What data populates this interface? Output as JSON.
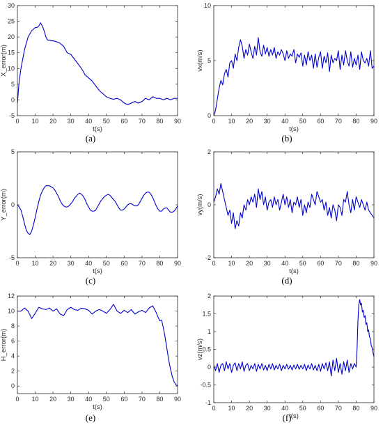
{
  "figure": {
    "line_color": "#0000cc",
    "axis_color": "#262626"
  },
  "chart_data": [
    {
      "id": "a",
      "caption": "(a)",
      "type": "line",
      "xlabel": "t(s)",
      "ylabel": "X_error(m)",
      "xlim": [
        0,
        90
      ],
      "ylim": [
        -5,
        30
      ],
      "xticks": [
        0,
        10,
        20,
        30,
        40,
        50,
        60,
        70,
        80,
        90
      ],
      "yticks": [
        -5,
        0,
        5,
        10,
        15,
        20,
        25,
        30
      ],
      "grid": false,
      "series": [
        {
          "x": [
            0,
            1,
            2,
            3,
            4,
            5,
            6,
            7,
            8,
            9,
            10,
            11,
            12,
            13,
            14,
            15,
            16,
            17,
            18,
            19,
            20,
            22,
            24,
            26,
            28,
            30,
            32,
            34,
            36,
            38,
            40,
            42,
            44,
            46,
            48,
            50,
            52,
            54,
            56,
            58,
            60,
            62,
            64,
            66,
            68,
            70,
            72,
            74,
            76,
            78,
            80,
            82,
            84,
            86,
            88,
            90
          ],
          "y": [
            -1,
            6,
            10,
            13,
            16,
            18,
            20,
            21,
            22,
            22.5,
            23,
            23,
            23.5,
            24.5,
            23.5,
            22,
            20,
            19,
            19,
            18.8,
            18.8,
            18.5,
            18,
            17,
            15,
            14.5,
            13,
            11.5,
            10,
            8,
            7,
            6,
            4.5,
            3,
            2,
            1,
            0.5,
            0.2,
            0.5,
            0,
            -1,
            -1.5,
            -1,
            -0.5,
            -1,
            -0.5,
            0.5,
            0,
            1,
            0.5,
            0.5,
            0,
            0.5,
            0,
            0.5,
            0.5
          ]
        }
      ]
    },
    {
      "id": "b",
      "caption": "(b)",
      "type": "line",
      "xlabel": "t(s)",
      "ylabel": "vx(m/s)",
      "xlim": [
        0,
        90
      ],
      "ylim": [
        0,
        10
      ],
      "xticks": [
        0,
        10,
        20,
        30,
        40,
        50,
        60,
        70,
        80,
        90
      ],
      "yticks": [
        0,
        5,
        10
      ],
      "grid": false,
      "series": [
        {
          "x": [
            0,
            1,
            2,
            3,
            4,
            5,
            6,
            7,
            8,
            9,
            10,
            11,
            12,
            13,
            14,
            15,
            16,
            17,
            18,
            19,
            20,
            21,
            22,
            23,
            24,
            25,
            26,
            27,
            28,
            29,
            30,
            31,
            32,
            33,
            34,
            35,
            36,
            37,
            38,
            39,
            40,
            41,
            42,
            43,
            44,
            45,
            46,
            47,
            48,
            49,
            50,
            51,
            52,
            53,
            54,
            55,
            56,
            57,
            58,
            59,
            60,
            61,
            62,
            63,
            64,
            65,
            66,
            67,
            68,
            69,
            70,
            71,
            72,
            73,
            74,
            75,
            76,
            77,
            78,
            79,
            80,
            81,
            82,
            83,
            84,
            85,
            86,
            87,
            88,
            89,
            90
          ],
          "y": [
            0,
            0.5,
            1.5,
            2.5,
            3.2,
            2.8,
            3.8,
            4.2,
            3.5,
            4.8,
            5,
            4.3,
            5.6,
            5,
            6.2,
            6.9,
            6.3,
            5.2,
            6,
            5.5,
            6.5,
            5.8,
            5.2,
            6.3,
            5.5,
            7.1,
            5.8,
            5.4,
            6.4,
            5.6,
            6.2,
            5.4,
            6,
            5.5,
            6.2,
            5.2,
            5.8,
            5.5,
            6,
            5.6,
            5,
            5.9,
            5.2,
            5.6,
            5.4,
            6,
            4.8,
            5.6,
            5.3,
            5.7,
            4.5,
            5.5,
            4.6,
            5.8,
            5,
            5.5,
            4.3,
            5.6,
            4.4,
            5.3,
            5.8,
            4.3,
            5.4,
            4.8,
            5.7,
            4,
            5.5,
            4.8,
            5.2,
            5,
            5.9,
            4.2,
            5.5,
            4.6,
            5.9,
            5,
            4.5,
            5.8,
            4.4,
            5.2,
            4.6,
            5.5,
            4.2,
            5.8,
            5,
            4.8,
            5.2,
            4.5,
            5.9,
            4.3,
            4.5
          ]
        }
      ]
    },
    {
      "id": "c",
      "caption": "(c)",
      "type": "line",
      "xlabel": "t(s)",
      "ylabel": "Y_error(m)",
      "xlim": [
        0,
        90
      ],
      "ylim": [
        -5,
        5
      ],
      "xticks": [
        0,
        10,
        20,
        30,
        40,
        50,
        60,
        70,
        80,
        90
      ],
      "yticks": [
        -5,
        0,
        5
      ],
      "grid": false,
      "series": [
        {
          "x": [
            0,
            1,
            2,
            3,
            4,
            5,
            6,
            7,
            8,
            9,
            10,
            11,
            12,
            13,
            14,
            15,
            16,
            17,
            18,
            19,
            20,
            21,
            22,
            23,
            24,
            25,
            26,
            27,
            28,
            29,
            30,
            31,
            32,
            33,
            34,
            35,
            36,
            37,
            38,
            39,
            40,
            41,
            42,
            43,
            44,
            45,
            46,
            47,
            48,
            49,
            50,
            51,
            52,
            53,
            54,
            55,
            56,
            57,
            58,
            59,
            60,
            61,
            62,
            63,
            64,
            65,
            66,
            67,
            68,
            69,
            70,
            71,
            72,
            73,
            74,
            75,
            76,
            77,
            78,
            79,
            80,
            81,
            82,
            83,
            84,
            85,
            86,
            87,
            88,
            89,
            90
          ],
          "y": [
            0,
            -0.2,
            -0.5,
            -1.1,
            -1.8,
            -2.4,
            -2.7,
            -2.8,
            -2.5,
            -1.9,
            -1.2,
            -0.4,
            0.3,
            0.9,
            1.3,
            1.6,
            1.8,
            1.8,
            1.8,
            1.7,
            1.6,
            1.4,
            1.1,
            0.8,
            0.4,
            0.1,
            -0.1,
            -0.2,
            -0.2,
            -0.1,
            0.1,
            0.3,
            0.6,
            0.8,
            1,
            1.1,
            1,
            0.8,
            0.5,
            0.1,
            -0.2,
            -0.5,
            -0.6,
            -0.6,
            -0.5,
            -0.2,
            0.1,
            0.4,
            0.6,
            0.8,
            0.9,
            1,
            0.9,
            0.7,
            0.5,
            0.3,
            0,
            -0.3,
            -0.5,
            -0.5,
            -0.4,
            -0.2,
            0,
            0.1,
            0.1,
            0,
            -0.1,
            -0.1,
            0,
            0.3,
            0.6,
            0.9,
            1.1,
            1.2,
            1.2,
            1,
            0.7,
            0.3,
            -0.1,
            -0.4,
            -0.6,
            -0.6,
            -0.4,
            -0.3,
            -0.3,
            -0.5,
            -0.7,
            -0.7,
            -0.6,
            -0.4,
            -0.1
          ]
        }
      ]
    },
    {
      "id": "d",
      "caption": "(d)",
      "type": "line",
      "xlabel": "t(s)",
      "ylabel": "vy(m/s)",
      "xlim": [
        0,
        90
      ],
      "ylim": [
        -2,
        2
      ],
      "xticks": [
        0,
        10,
        20,
        30,
        40,
        50,
        60,
        70,
        80,
        90
      ],
      "yticks": [
        -2,
        0,
        2
      ],
      "grid": false,
      "series": [
        {
          "x": [
            0,
            1,
            2,
            3,
            4,
            5,
            6,
            7,
            8,
            9,
            10,
            11,
            12,
            13,
            14,
            15,
            16,
            17,
            18,
            19,
            20,
            21,
            22,
            23,
            24,
            25,
            26,
            27,
            28,
            29,
            30,
            31,
            32,
            33,
            34,
            35,
            36,
            37,
            38,
            39,
            40,
            41,
            42,
            43,
            44,
            45,
            46,
            47,
            48,
            49,
            50,
            51,
            52,
            53,
            54,
            55,
            56,
            57,
            58,
            59,
            60,
            61,
            62,
            63,
            64,
            65,
            66,
            67,
            68,
            69,
            70,
            71,
            72,
            73,
            74,
            75,
            76,
            77,
            78,
            79,
            80,
            81,
            82,
            83,
            84,
            85,
            86,
            87,
            88,
            89,
            90
          ],
          "y": [
            0.1,
            0.3,
            0.6,
            0.4,
            0.8,
            0.5,
            0.2,
            -0.1,
            -0.4,
            -0.2,
            -0.7,
            -0.3,
            -0.9,
            -0.6,
            -0.8,
            -0.3,
            -0.5,
            0,
            -0.2,
            0.2,
            0,
            0.3,
            0.1,
            0.4,
            -0.1,
            0.6,
            0.2,
            0.5,
            0,
            0.3,
            -0.2,
            0.1,
            0.2,
            -0.1,
            0.3,
            0,
            0.2,
            -0.2,
            0.1,
            0.4,
            0,
            0.3,
            -0.1,
            0.2,
            -0.3,
            0.1,
            0,
            0.3,
            -0.1,
            0.2,
            -0.4,
            0,
            -0.3,
            0.1,
            -0.1,
            0.4,
            0.2,
            0,
            0.5,
            0.3,
            0.1,
            0.2,
            -0.2,
            0.1,
            -0.4,
            -0.1,
            -0.5,
            0,
            -0.2,
            -0.6,
            0,
            -0.1,
            -0.4,
            0.2,
            0.1,
            0.5,
            0,
            -0.3,
            0.2,
            -0.2,
            0.3,
            0.1,
            -0.1,
            0.2,
            0,
            -0.2,
            0.1,
            -0.2,
            -0.3,
            -0.4,
            -0.5
          ]
        }
      ]
    },
    {
      "id": "e",
      "caption": "(e)",
      "type": "line",
      "xlabel": "t(s)",
      "ylabel": "H_error(m)",
      "xlim": [
        0,
        90
      ],
      "ylim": [
        -1,
        12
      ],
      "xticks": [
        0,
        10,
        20,
        30,
        40,
        50,
        60,
        70,
        80,
        90
      ],
      "yticks": [
        0,
        2,
        4,
        6,
        8,
        10,
        12
      ],
      "grid": false,
      "series": [
        {
          "x": [
            0,
            2,
            4,
            6,
            8,
            10,
            12,
            14,
            16,
            18,
            20,
            22,
            24,
            26,
            28,
            30,
            32,
            34,
            36,
            38,
            40,
            42,
            44,
            46,
            48,
            50,
            52,
            54,
            56,
            58,
            60,
            62,
            64,
            66,
            68,
            70,
            72,
            74,
            76,
            78,
            79,
            80,
            81,
            82,
            83,
            84,
            85,
            86,
            87,
            88,
            89,
            90
          ],
          "y": [
            10,
            10,
            10.4,
            10,
            9,
            9.7,
            10.5,
            10.3,
            10.2,
            10.4,
            10,
            10.3,
            9.6,
            9.4,
            10.2,
            10.5,
            10.2,
            10.1,
            10.4,
            10.3,
            10.1,
            9.6,
            10,
            10.2,
            10,
            9.7,
            10.2,
            10.9,
            10,
            9.7,
            10.1,
            9.8,
            10.2,
            9.6,
            9.9,
            10.1,
            9.8,
            10.4,
            10.7,
            9.8,
            9.2,
            8.7,
            8.8,
            7.8,
            6.5,
            5,
            3.5,
            2.3,
            1.3,
            0.6,
            0.2,
            0
          ]
        }
      ]
    },
    {
      "id": "f",
      "caption": "(f)",
      "type": "line",
      "xlabel": "t(s)",
      "ylabel": "vz(m/s)",
      "xlim": [
        0,
        90
      ],
      "ylim": [
        -1,
        2
      ],
      "xticks": [
        0,
        10,
        20,
        30,
        40,
        50,
        60,
        70,
        80,
        90
      ],
      "yticks": [
        -1,
        -0.5,
        0,
        0.5,
        1,
        1.5,
        2
      ],
      "grid": false,
      "series": [
        {
          "x": [
            0,
            1,
            2,
            3,
            4,
            5,
            6,
            7,
            8,
            9,
            10,
            11,
            12,
            13,
            14,
            15,
            16,
            17,
            18,
            19,
            20,
            21,
            22,
            23,
            24,
            25,
            26,
            27,
            28,
            29,
            30,
            31,
            32,
            33,
            34,
            35,
            36,
            37,
            38,
            39,
            40,
            41,
            42,
            43,
            44,
            45,
            46,
            47,
            48,
            49,
            50,
            51,
            52,
            53,
            54,
            55,
            56,
            57,
            58,
            59,
            60,
            61,
            62,
            63,
            64,
            65,
            66,
            67,
            68,
            69,
            70,
            71,
            72,
            73,
            74,
            75,
            76,
            77,
            78,
            79,
            80,
            80.5,
            81,
            81.5,
            82,
            82.5,
            83,
            83.5,
            84,
            84.5,
            85,
            85.5,
            86,
            86.5,
            87,
            87.5,
            88,
            88.5,
            89,
            89.5,
            90
          ],
          "y": [
            0.05,
            -0.1,
            0.1,
            -0.15,
            0.05,
            0.1,
            -0.1,
            0.15,
            -0.05,
            0.1,
            -0.15,
            0.05,
            0.12,
            -0.1,
            0.1,
            -0.05,
            0.15,
            -0.12,
            0.05,
            0.1,
            -0.1,
            0.05,
            -0.05,
            0.1,
            -0.12,
            0.08,
            -0.05,
            0.1,
            -0.08,
            0.05,
            -0.1,
            0.08,
            -0.05,
            0.1,
            -0.08,
            0.05,
            -0.05,
            0.08,
            -0.1,
            0.05,
            -0.05,
            0.08,
            -0.06,
            0.05,
            -0.08,
            0.06,
            -0.05,
            0.08,
            -0.06,
            0.05,
            -0.05,
            0.08,
            -0.1,
            0.06,
            -0.05,
            0.1,
            -0.08,
            0.05,
            -0.1,
            0.08,
            -0.12,
            0.1,
            -0.05,
            0.12,
            -0.1,
            0.15,
            -0.25,
            0.2,
            -0.1,
            0.25,
            -0.15,
            0.1,
            -0.2,
            0.15,
            -0.1,
            0.2,
            -0.15,
            0.1,
            -0.05,
            0.1,
            0,
            0.5,
            1.3,
            1.75,
            1.9,
            1.75,
            1.8,
            1.55,
            1.6,
            1.4,
            1.45,
            1.2,
            1.25,
            1.0,
            1.05,
            0.85,
            0.8,
            0.6,
            0.55,
            0.4,
            0.3
          ]
        }
      ]
    }
  ]
}
